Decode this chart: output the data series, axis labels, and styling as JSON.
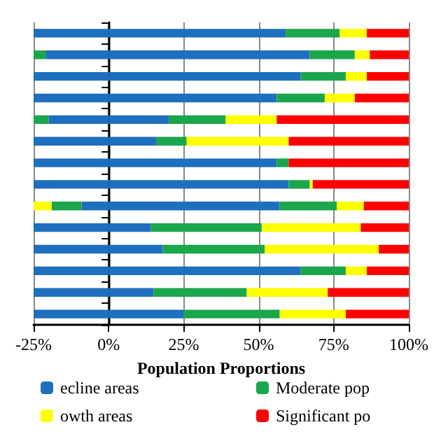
{
  "chart_data": {
    "type": "bar",
    "orientation": "horizontal",
    "stacked": true,
    "xlabel": "Population Proportions",
    "categories": [
      null,
      null,
      null,
      null,
      null,
      null,
      null,
      null,
      null,
      null,
      null,
      null,
      null,
      null
    ],
    "series": [
      {
        "name": "ecline areas",
        "color": "#1f6fbf",
        "values": [
          59,
          67,
          64,
          56,
          20,
          16,
          56,
          60,
          57,
          14,
          18,
          64,
          15,
          25
        ]
      },
      {
        "name": "Moderate pop",
        "color": "#1aa64a",
        "values": [
          18,
          15,
          15,
          16,
          19,
          10,
          4,
          7,
          19,
          37,
          34,
          15,
          31,
          32
        ]
      },
      {
        "name": "owth areas",
        "color": "#ffff00",
        "values": [
          9,
          5,
          7,
          10,
          17,
          34,
          0,
          1,
          9,
          33,
          38,
          7,
          27,
          22
        ]
      },
      {
        "name": "Significant po",
        "color": "#ff0000",
        "values": [
          14,
          13,
          14,
          18,
          44,
          40,
          40,
          32,
          15,
          16,
          10,
          14,
          27,
          21
        ]
      },
      {
        "color": "#1f6fbf",
        "values": [
          -25,
          -21,
          -25,
          -25,
          -20,
          -25,
          -25,
          -25,
          -9,
          -25,
          -25,
          -25,
          -25,
          -25
        ]
      },
      {
        "color": "#1aa64a",
        "values": [
          null,
          -4,
          null,
          null,
          -5,
          null,
          null,
          null,
          -10,
          null,
          null,
          null,
          null,
          null
        ]
      },
      {
        "color": "#ffff00",
        "values": [
          null,
          null,
          null,
          null,
          null,
          null,
          null,
          null,
          -6,
          null,
          null,
          null,
          null,
          null
        ]
      }
    ],
    "xlim": [
      -25,
      100
    ],
    "xticks": [
      {
        "value": -25,
        "label": "-25%"
      },
      {
        "value": 0,
        "label": "0%"
      },
      {
        "value": 25,
        "label": "25%"
      },
      {
        "value": 50,
        "label": "50%"
      },
      {
        "value": 75,
        "label": "75%"
      },
      {
        "value": 100,
        "label": "100%"
      }
    ],
    "grid": "x",
    "legend": "bottom"
  }
}
